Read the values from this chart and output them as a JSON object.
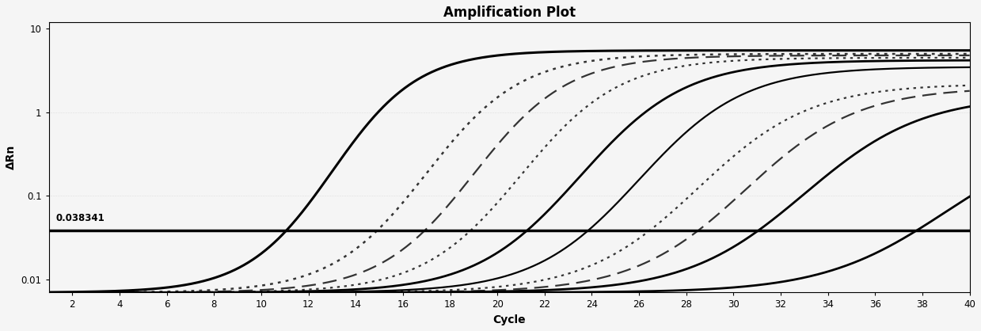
{
  "title": "Amplification Plot",
  "xlabel": "Cycle",
  "ylabel": "ΔRn",
  "xlim": [
    1,
    40
  ],
  "ylim_log": [
    0.007,
    12
  ],
  "xticks": [
    2,
    4,
    6,
    8,
    10,
    12,
    14,
    16,
    18,
    20,
    22,
    24,
    26,
    28,
    30,
    32,
    34,
    36,
    38,
    40
  ],
  "yticks": [
    0.01,
    0.1,
    1,
    10
  ],
  "ytick_labels": [
    "0.01",
    "0.1",
    "1",
    "10"
  ],
  "threshold": 0.038341,
  "threshold_label": "0.038341",
  "background_color": "#f5f5f5",
  "threshold_lw": 2.5,
  "curves": [
    {
      "midpoint": 13.0,
      "rate": 0.55,
      "plateau": 5.5,
      "baseline": 0.007,
      "style": "solid",
      "lw": 2.2,
      "color": "#000000"
    },
    {
      "midpoint": 17.0,
      "rate": 0.5,
      "plateau": 5.0,
      "baseline": 0.007,
      "style": "dotted",
      "lw": 1.8,
      "color": "#333333"
    },
    {
      "midpoint": 19.0,
      "rate": 0.5,
      "plateau": 4.8,
      "baseline": 0.007,
      "style": "dashed",
      "lw": 1.6,
      "color": "#333333"
    },
    {
      "midpoint": 21.0,
      "rate": 0.48,
      "plateau": 4.5,
      "baseline": 0.007,
      "style": "dotted",
      "lw": 1.6,
      "color": "#333333"
    },
    {
      "midpoint": 23.5,
      "rate": 0.45,
      "plateau": 4.2,
      "baseline": 0.007,
      "style": "solid",
      "lw": 2.0,
      "color": "#000000"
    },
    {
      "midpoint": 26.0,
      "rate": 0.45,
      "plateau": 3.5,
      "baseline": 0.007,
      "style": "solid",
      "lw": 1.6,
      "color": "#000000"
    },
    {
      "midpoint": 28.5,
      "rate": 0.42,
      "plateau": 2.2,
      "baseline": 0.007,
      "style": "dotted",
      "lw": 1.6,
      "color": "#333333"
    },
    {
      "midpoint": 30.5,
      "rate": 0.42,
      "plateau": 2.0,
      "baseline": 0.007,
      "style": "dashed",
      "lw": 1.6,
      "color": "#333333"
    },
    {
      "midpoint": 33.0,
      "rate": 0.4,
      "plateau": 1.6,
      "baseline": 0.007,
      "style": "solid",
      "lw": 2.0,
      "color": "#000000"
    },
    {
      "midpoint": 39.0,
      "rate": 0.38,
      "plateau": 0.6,
      "baseline": 0.007,
      "style": "solid",
      "lw": 2.0,
      "color": "#000000"
    }
  ]
}
